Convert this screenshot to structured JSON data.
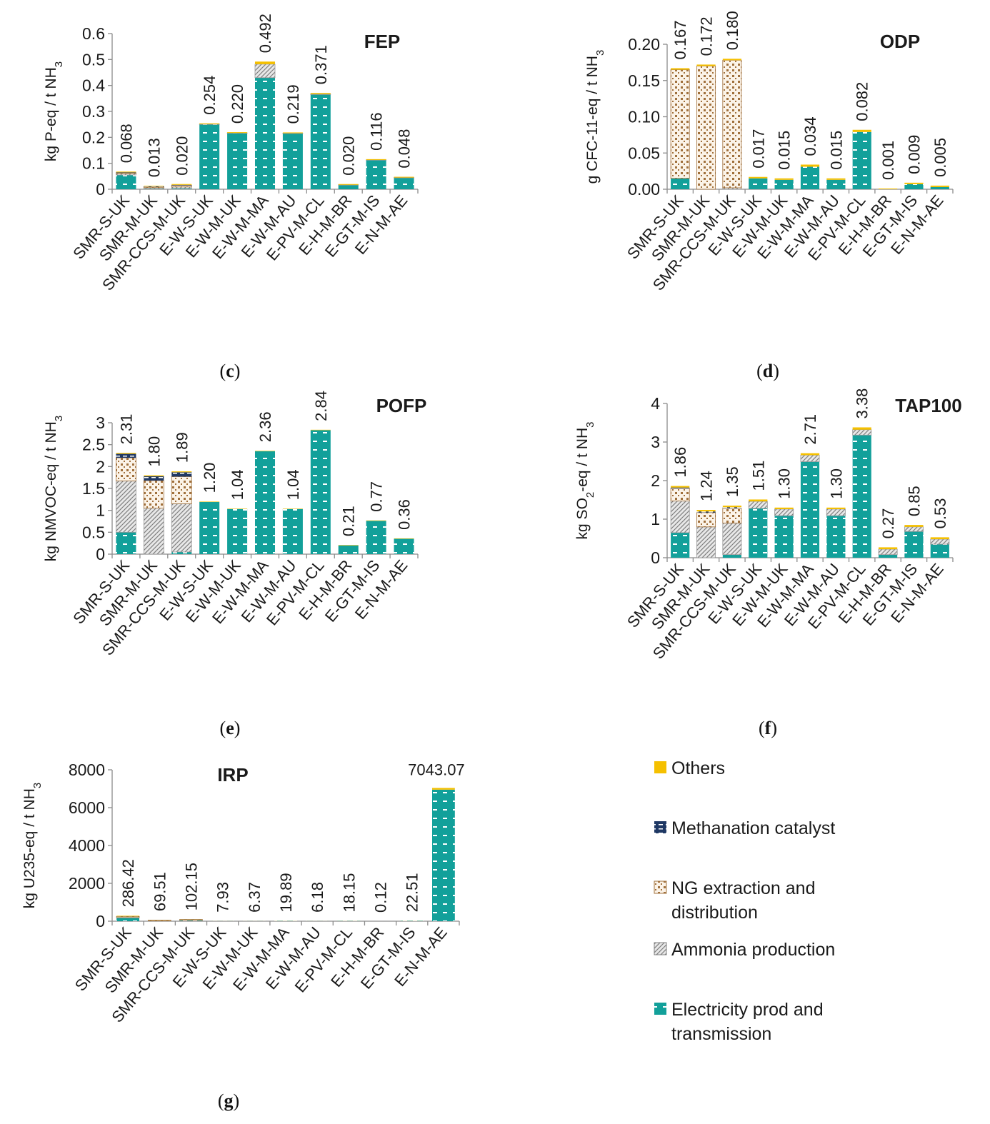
{
  "categories": [
    "SMR-S-UK",
    "SMR-M-UK",
    "SMR-CCS-M-UK",
    "E-W-S-UK",
    "E-W-M-UK",
    "E-W-M-MA",
    "E-W-M-AU",
    "E-PV-M-CL",
    "E-H-M-BR",
    "E-GT-M-IS",
    "E-N-M-AE"
  ],
  "colors": {
    "electricity": "#12a09a",
    "ammonia": "#d9d9d9",
    "ng": "#ffffff",
    "ng_dots": "#a0703c",
    "methanation": "#1f3864",
    "others": "#f5c000"
  },
  "legend": [
    {
      "key": "others",
      "label_lines": [
        "Others"
      ]
    },
    {
      "key": "methanation",
      "label_lines": [
        "Methanation catalyst"
      ]
    },
    {
      "key": "ng",
      "label_lines": [
        "NG extraction and",
        "distribution"
      ]
    },
    {
      "key": "ammonia",
      "label_lines": [
        "Ammonia production"
      ]
    },
    {
      "key": "electricity",
      "label_lines": [
        "Electricity prod and",
        "transmission"
      ]
    }
  ],
  "chart_data": [
    {
      "type": "bar",
      "stacked": true,
      "panel": "(c)",
      "title": "FEP",
      "ylabel": "kg P-eq / t NH",
      "ylabel_sub": "3",
      "ylim": [
        0,
        0.6
      ],
      "yticks": [
        "0",
        "0.1",
        "0.2",
        "0.3",
        "0.4",
        "0.5",
        "0.6"
      ],
      "totals": [
        "0.068",
        "0.013",
        "0.020",
        "0.254",
        "0.220",
        "0.492",
        "0.219",
        "0.371",
        "0.020",
        "0.116",
        "0.048"
      ],
      "series": [
        {
          "key": "electricity",
          "values": [
            0.055,
            0.002,
            0.003,
            0.25,
            0.216,
            0.43,
            0.215,
            0.365,
            0.016,
            0.112,
            0.044
          ]
        },
        {
          "key": "ammonia",
          "values": [
            0.006,
            0.004,
            0.006,
            0.001,
            0.001,
            0.052,
            0.001,
            0.002,
            0.001,
            0.001,
            0.001
          ]
        },
        {
          "key": "ng",
          "values": [
            0.002,
            0.003,
            0.006,
            0,
            0,
            0,
            0,
            0,
            0,
            0,
            0
          ]
        },
        {
          "key": "methanation",
          "values": [
            0.002,
            0.002,
            0.002,
            0,
            0,
            0,
            0,
            0,
            0,
            0,
            0
          ]
        },
        {
          "key": "others",
          "values": [
            0.003,
            0.002,
            0.003,
            0.003,
            0.003,
            0.01,
            0.003,
            0.004,
            0.003,
            0.003,
            0.003
          ]
        }
      ]
    },
    {
      "type": "bar",
      "stacked": true,
      "panel": "(d)",
      "title": "ODP",
      "ylabel": "g CFC-11-eq / t NH",
      "ylabel_sub": "3",
      "ylim": [
        0,
        0.2
      ],
      "yticks": [
        "0.00",
        "0.05",
        "0.10",
        "0.15",
        "0.20"
      ],
      "totals": [
        "0.167",
        "0.172",
        "0.180",
        "0.017",
        "0.015",
        "0.034",
        "0.015",
        "0.082",
        "0.001",
        "0.009",
        "0.005"
      ],
      "series": [
        {
          "key": "electricity",
          "values": [
            0.015,
            0,
            0,
            0.015,
            0.013,
            0.031,
            0.013,
            0.079,
            0,
            0.007,
            0.003
          ]
        },
        {
          "key": "ammonia",
          "values": [
            0,
            0,
            0.002,
            0,
            0,
            0,
            0,
            0,
            0,
            0,
            0
          ]
        },
        {
          "key": "ng",
          "values": [
            0.15,
            0.17,
            0.176,
            0,
            0,
            0,
            0,
            0,
            0,
            0,
            0
          ]
        },
        {
          "key": "methanation",
          "values": [
            0,
            0,
            0,
            0,
            0,
            0,
            0,
            0,
            0,
            0,
            0
          ]
        },
        {
          "key": "others",
          "values": [
            0.002,
            0.002,
            0.002,
            0.002,
            0.002,
            0.003,
            0.002,
            0.003,
            0.001,
            0.002,
            0.002
          ]
        }
      ]
    },
    {
      "type": "bar",
      "stacked": true,
      "panel": "(e)",
      "title": "POFP",
      "ylabel": "kg NMVOC-eq / t NH",
      "ylabel_sub": "3",
      "ylim": [
        0,
        3
      ],
      "yticks": [
        "0",
        "0.5",
        "1",
        "1.5",
        "2",
        "2.5",
        "3"
      ],
      "totals": [
        "2.31",
        "1.80",
        "1.89",
        "1.20",
        "1.04",
        "2.36",
        "1.04",
        "2.84",
        "0.21",
        "0.77",
        "0.36"
      ],
      "series": [
        {
          "key": "electricity",
          "values": [
            0.5,
            0,
            0.05,
            1.19,
            1.03,
            2.35,
            1.03,
            2.83,
            0.2,
            0.76,
            0.35
          ]
        },
        {
          "key": "ammonia",
          "values": [
            1.17,
            1.05,
            1.1,
            0,
            0,
            0,
            0,
            0,
            0,
            0,
            0
          ]
        },
        {
          "key": "ng",
          "values": [
            0.53,
            0.63,
            0.62,
            0,
            0,
            0,
            0,
            0,
            0,
            0,
            0
          ]
        },
        {
          "key": "methanation",
          "values": [
            0.09,
            0.1,
            0.1,
            0,
            0,
            0,
            0,
            0,
            0,
            0,
            0
          ]
        },
        {
          "key": "others",
          "values": [
            0.02,
            0.02,
            0.02,
            0.01,
            0.01,
            0.01,
            0.01,
            0.01,
            0.01,
            0.01,
            0.01
          ]
        }
      ]
    },
    {
      "type": "bar",
      "stacked": true,
      "panel": "(f)",
      "title": "TAP100",
      "ylabel": "kg SO",
      "ylabel_mid_sub": "2",
      "ylabel_tail": "-eq / t NH",
      "ylabel_sub": "3",
      "ylim": [
        0,
        4
      ],
      "yticks": [
        "0",
        "1",
        "2",
        "3",
        "4"
      ],
      "totals": [
        "1.86",
        "1.24",
        "1.35",
        "1.51",
        "1.30",
        "2.71",
        "1.30",
        "3.38",
        "0.27",
        "0.85",
        "0.53"
      ],
      "series": [
        {
          "key": "electricity",
          "values": [
            0.65,
            0,
            0.08,
            1.28,
            1.09,
            2.49,
            1.09,
            3.18,
            0.08,
            0.68,
            0.35
          ]
        },
        {
          "key": "ammonia",
          "values": [
            0.82,
            0.8,
            0.82,
            0.18,
            0.17,
            0.17,
            0.17,
            0.14,
            0.14,
            0.12,
            0.13
          ]
        },
        {
          "key": "ng",
          "values": [
            0.33,
            0.37,
            0.38,
            0,
            0,
            0,
            0,
            0,
            0,
            0,
            0
          ]
        },
        {
          "key": "methanation",
          "values": [
            0.02,
            0.03,
            0.03,
            0,
            0,
            0,
            0,
            0,
            0,
            0,
            0
          ]
        },
        {
          "key": "others",
          "values": [
            0.04,
            0.04,
            0.04,
            0.05,
            0.04,
            0.05,
            0.04,
            0.06,
            0.05,
            0.05,
            0.05
          ]
        }
      ]
    },
    {
      "type": "bar",
      "stacked": true,
      "panel": "(g)",
      "title": "IRP",
      "ylabel": "kg U235-eq / t NH",
      "ylabel_sub": "3",
      "ylim": [
        0,
        8000
      ],
      "yticks": [
        "0",
        "2000",
        "4000",
        "6000",
        "8000"
      ],
      "totals": [
        "286.42",
        "69.51",
        "102.15",
        "7.93",
        "6.37",
        "19.89",
        "6.18",
        "18.15",
        "0.12",
        "22.51",
        "7043.07"
      ],
      "series": [
        {
          "key": "electricity",
          "values": [
            180,
            5,
            40,
            5,
            4,
            15,
            4,
            14,
            0.1,
            18,
            6950
          ]
        },
        {
          "key": "ammonia",
          "values": [
            10,
            8,
            10,
            0,
            0,
            0,
            0,
            0,
            0,
            0,
            0
          ]
        },
        {
          "key": "ng",
          "values": [
            60,
            45,
            42,
            0,
            0,
            0,
            0,
            0,
            0,
            0,
            0
          ]
        },
        {
          "key": "methanation",
          "values": [
            6,
            5,
            5,
            0,
            0,
            0,
            0,
            0,
            0,
            0,
            0
          ]
        },
        {
          "key": "others",
          "values": [
            30,
            6.5,
            5,
            2.9,
            2.4,
            4.9,
            2.2,
            4.2,
            0.02,
            4.5,
            93
          ]
        }
      ]
    }
  ]
}
